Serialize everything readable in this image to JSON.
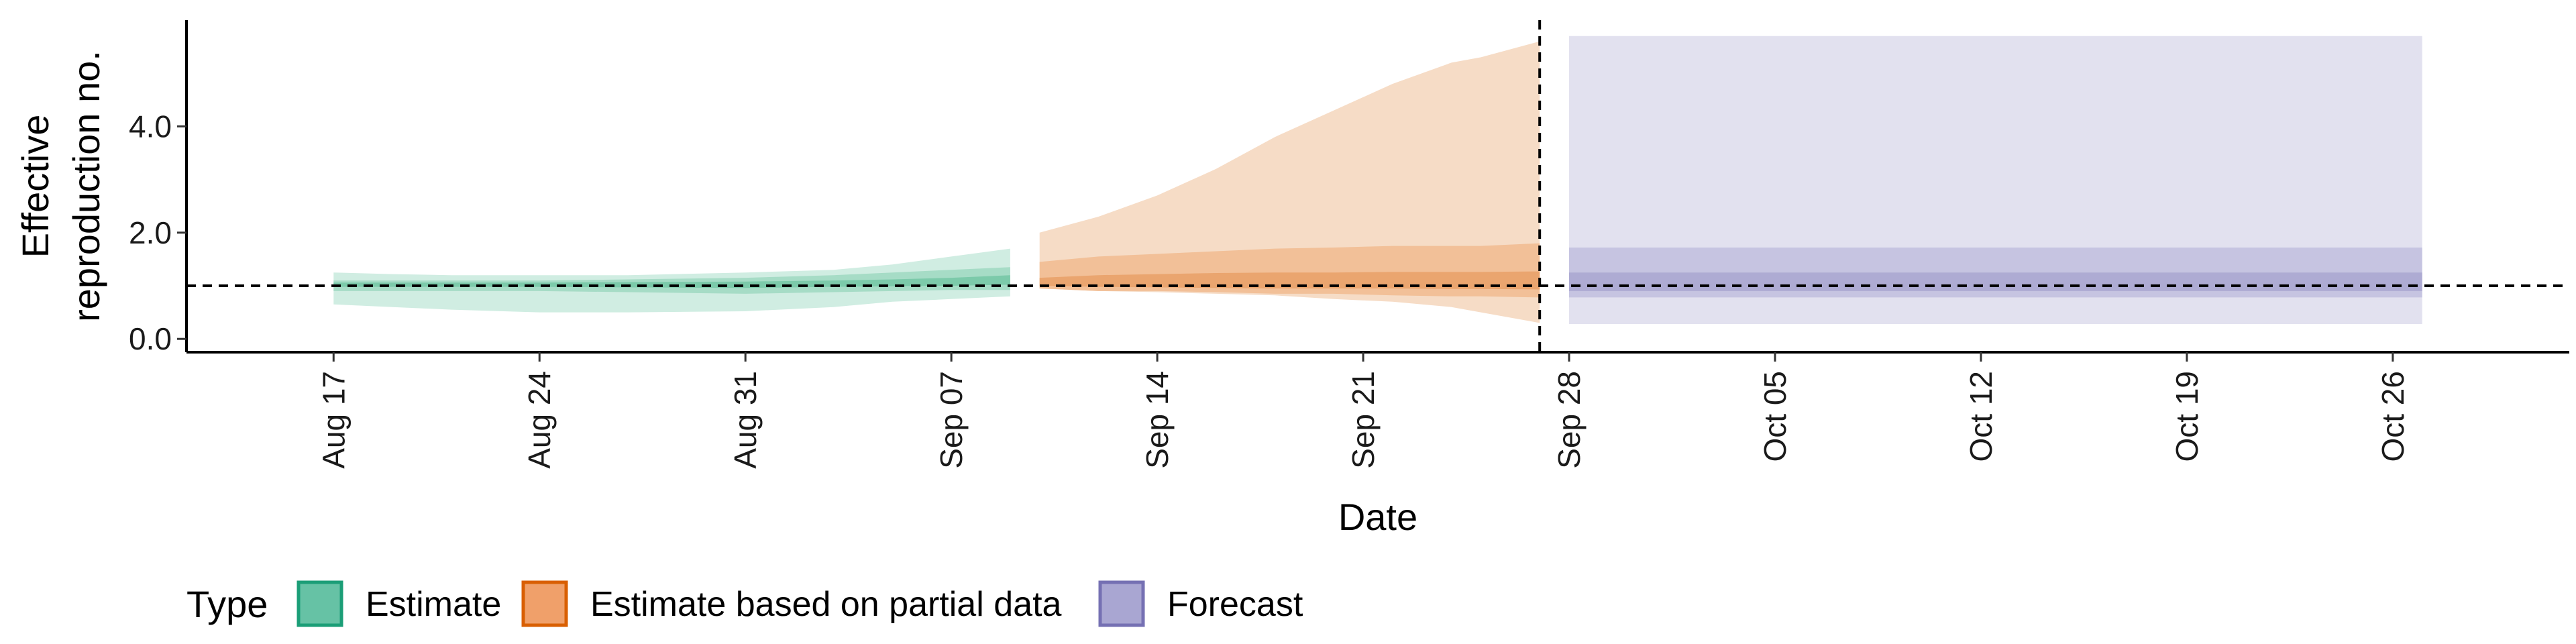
{
  "chart_data": {
    "type": "area",
    "ylabel_lines": [
      "Effective",
      "reproduction no."
    ],
    "xlabel": "Date",
    "yticks": [
      "0.0",
      "2.0",
      "4.0"
    ],
    "ytick_values": [
      0,
      2,
      4
    ],
    "ylim": [
      -0.25,
      6.0
    ],
    "xlim": [
      "2020-08-12",
      "2020-11-01"
    ],
    "xticks": [
      {
        "date": "2020-08-17",
        "label": "Aug 17"
      },
      {
        "date": "2020-08-24",
        "label": "Aug 24"
      },
      {
        "date": "2020-08-31",
        "label": "Aug 31"
      },
      {
        "date": "2020-09-07",
        "label": "Sep 07"
      },
      {
        "date": "2020-09-14",
        "label": "Sep 14"
      },
      {
        "date": "2020-09-21",
        "label": "Sep 21"
      },
      {
        "date": "2020-09-28",
        "label": "Sep 28"
      },
      {
        "date": "2020-10-05",
        "label": "Oct 05"
      },
      {
        "date": "2020-10-12",
        "label": "Oct 12"
      },
      {
        "date": "2020-10-19",
        "label": "Oct 19"
      },
      {
        "date": "2020-10-26",
        "label": "Oct 26"
      }
    ],
    "hline_y": 1.0,
    "vline_date": "2020-09-27",
    "legend": {
      "title": "Type",
      "position": "bottom-left",
      "items": [
        {
          "label": "Estimate",
          "fill": "#66c2a5",
          "stroke": "#1b9e77"
        },
        {
          "label": "Estimate based on partial data",
          "fill": "#f0a06a",
          "stroke": "#d95f02"
        },
        {
          "label": "Forecast",
          "fill": "#a9a6d2",
          "stroke": "#7570b3"
        }
      ]
    },
    "series": [
      {
        "name": "Estimate",
        "colors": {
          "outer": "#d0ede2",
          "mid": "#a6dcc6",
          "inner": "#7ccaaa"
        },
        "dates": [
          "2020-08-17",
          "2020-08-19",
          "2020-08-21",
          "2020-08-24",
          "2020-08-27",
          "2020-08-31",
          "2020-09-03",
          "2020-09-05",
          "2020-09-07",
          "2020-09-09",
          "2020-09-09"
        ],
        "outer_lo": [
          0.65,
          0.6,
          0.55,
          0.5,
          0.5,
          0.52,
          0.6,
          0.7,
          0.75,
          0.8,
          0.82
        ],
        "outer_hi": [
          1.25,
          1.22,
          1.2,
          1.2,
          1.2,
          1.25,
          1.3,
          1.4,
          1.55,
          1.7,
          1.75
        ],
        "mid_lo": [
          0.9,
          0.9,
          0.9,
          0.9,
          0.88,
          0.85,
          0.88,
          0.9,
          0.92,
          0.92,
          0.92
        ],
        "mid_hi": [
          1.1,
          1.1,
          1.1,
          1.1,
          1.12,
          1.15,
          1.2,
          1.25,
          1.3,
          1.35,
          1.35
        ],
        "inner_lo": [
          0.98,
          0.98,
          0.98,
          0.98,
          0.97,
          0.96,
          0.98,
          0.99,
          1.0,
          1.02,
          1.02
        ],
        "inner_hi": [
          1.06,
          1.06,
          1.06,
          1.06,
          1.07,
          1.08,
          1.1,
          1.12,
          1.15,
          1.2,
          1.2
        ]
      },
      {
        "name": "Estimate based on partial data",
        "colors": {
          "outer": "#f6dcc6",
          "mid": "#f2c098",
          "inner": "#eaa56f"
        },
        "dates": [
          "2020-09-10",
          "2020-09-12",
          "2020-09-14",
          "2020-09-16",
          "2020-09-18",
          "2020-09-20",
          "2020-09-22",
          "2020-09-24",
          "2020-09-25",
          "2020-09-27"
        ],
        "outer_lo": [
          0.95,
          0.9,
          0.88,
          0.85,
          0.82,
          0.75,
          0.7,
          0.6,
          0.5,
          0.3
        ],
        "outer_hi": [
          2.0,
          2.3,
          2.7,
          3.2,
          3.8,
          4.3,
          4.8,
          5.2,
          5.3,
          5.6
        ],
        "mid_lo": [
          0.95,
          0.9,
          0.9,
          0.88,
          0.85,
          0.85,
          0.82,
          0.8,
          0.8,
          0.78
        ],
        "mid_hi": [
          1.45,
          1.55,
          1.6,
          1.65,
          1.7,
          1.72,
          1.75,
          1.75,
          1.75,
          1.8
        ],
        "inner_lo": [
          1.0,
          0.98,
          0.97,
          0.96,
          0.95,
          0.95,
          0.95,
          0.94,
          0.94,
          0.93
        ],
        "inner_hi": [
          1.15,
          1.2,
          1.22,
          1.24,
          1.25,
          1.25,
          1.26,
          1.26,
          1.26,
          1.27
        ]
      },
      {
        "name": "Forecast",
        "colors": {
          "outer": "#e2e1ef",
          "mid": "#c6c4e1",
          "inner": "#aeabd3"
        },
        "dates": [
          "2020-09-28",
          "2020-10-27"
        ],
        "outer_lo": [
          0.28,
          0.28
        ],
        "outer_hi": [
          5.7,
          5.7
        ],
        "mid_lo": [
          0.78,
          0.78
        ],
        "mid_hi": [
          1.72,
          1.72
        ],
        "inner_lo": [
          0.9,
          0.9
        ],
        "inner_hi": [
          1.25,
          1.25
        ]
      }
    ]
  }
}
